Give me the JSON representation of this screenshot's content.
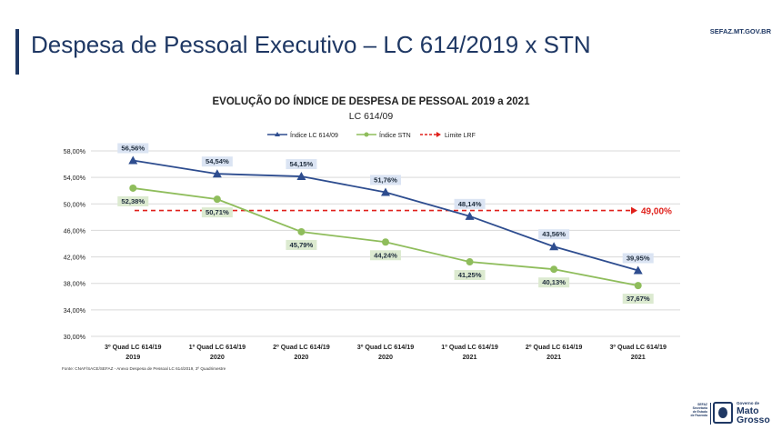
{
  "slide": {
    "title": "Despesa de Pessoal Executivo – LC 614/2019 x STN",
    "site": "SEFAZ.MT.GOV.BR",
    "source_note": "Fonte: CNAF/SACE/SEFAZ - Anexo Despesa de Pessoal LC 614/2019, 3º Quadrimestre",
    "logo": {
      "left_text": [
        "SEFAZ",
        "Secretaria",
        "de Estado",
        "de Fazenda"
      ],
      "gov_text": "Governo de",
      "state_lines": [
        "Mato",
        "Grosso"
      ]
    }
  },
  "colors": {
    "lc_series": "#2e4d8f",
    "stn_series": "#8fbd5c",
    "limit_line": "#e0201b",
    "lc_label_bg": "#dbe4f3",
    "stn_label_bg": "#dcead0",
    "grid": "#d9d9d9"
  },
  "chart_data": {
    "type": "line",
    "title": "EVOLUÇÃO DO ÍNDICE DE DESPESA DE PESSOAL 2019 a 2021",
    "subtitle": "LC 614/09",
    "categories": [
      [
        "3º Quad LC 614/19",
        "2019"
      ],
      [
        "1º Quad LC 614/19",
        "2020"
      ],
      [
        "2º Quad LC 614/19",
        "2020"
      ],
      [
        "3º Quad LC 614/19",
        "2020"
      ],
      [
        "1º Quad LC 614/19",
        "2021"
      ],
      [
        "2º Quad LC 614/19",
        "2021"
      ],
      [
        "3º Quad LC 614/19",
        "2021"
      ]
    ],
    "series": [
      {
        "name": "Índice LC 614/09",
        "values": [
          56.56,
          54.54,
          54.15,
          51.76,
          48.14,
          43.56,
          39.95
        ],
        "labels": [
          "56,56%",
          "54,54%",
          "54,15%",
          "51,76%",
          "48,14%",
          "43,56%",
          "39,95%"
        ]
      },
      {
        "name": "Índice STN",
        "values": [
          52.38,
          50.71,
          45.79,
          44.24,
          41.25,
          40.13,
          37.67
        ],
        "labels": [
          "52,38%",
          "50,71%",
          "45,79%",
          "44,24%",
          "41,25%",
          "40,13%",
          "37,67%"
        ]
      },
      {
        "name": "Limite LRF",
        "values": [
          49.0,
          49.0,
          49.0,
          49.0,
          49.0,
          49.0,
          49.0
        ],
        "label": "49,00%"
      }
    ],
    "y_ticks": [
      30,
      34,
      38,
      42,
      46,
      50,
      54,
      58
    ],
    "y_tick_labels": [
      "30,00%",
      "34,00%",
      "38,00%",
      "42,00%",
      "46,00%",
      "50,00%",
      "54,00%",
      "58,00%"
    ],
    "ylim": [
      30,
      58
    ],
    "grid": true,
    "legend_position": "top"
  }
}
